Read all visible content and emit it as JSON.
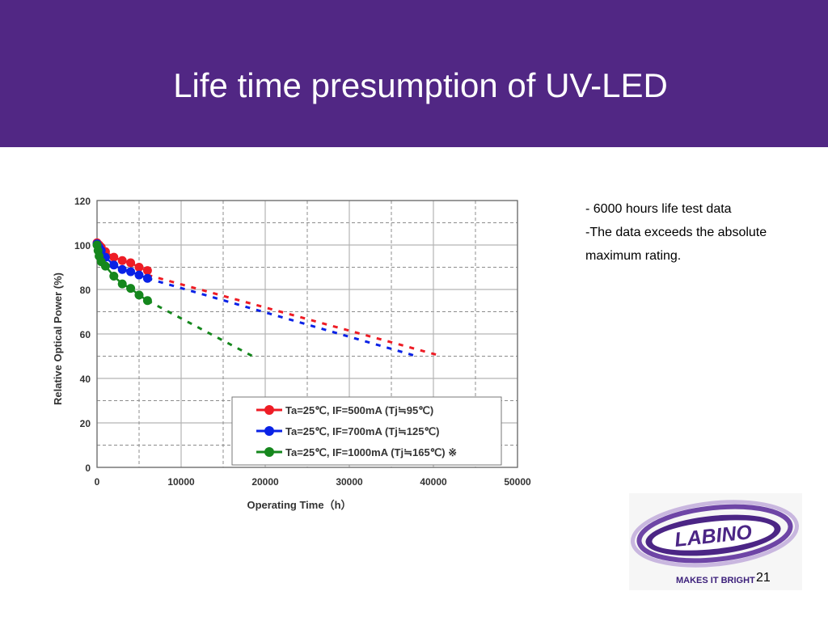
{
  "slide": {
    "title": "Life time presumption of UV-LED",
    "page_number": "21",
    "header_color": "#512784"
  },
  "notes": [
    "- 6000 hours life test data",
    "-The data exceeds the absolute",
    "maximum rating."
  ],
  "logo": {
    "text": "LABINO",
    "tagline": "MAKES IT BRIGHT",
    "primary_color": "#4b2585"
  },
  "chart_data": {
    "type": "line",
    "title": "",
    "xlabel": "Operating Time（h）",
    "ylabel": "Relative Optical Power (%)",
    "xlim": [
      0,
      50000
    ],
    "ylim": [
      0,
      120
    ],
    "x_ticks": [
      "0",
      "10000",
      "20000",
      "30000",
      "40000",
      "50000"
    ],
    "y_ticks": [
      "0",
      "20",
      "40",
      "60",
      "80",
      "100",
      "120"
    ],
    "grid": true,
    "legend_position": "bottom-right",
    "series": [
      {
        "name": "Ta=25℃, IF=500mA (Tj≒95℃)",
        "color": "#ee1c25",
        "measured": {
          "x": [
            0,
            250,
            500,
            1000,
            2000,
            3000,
            4000,
            5000,
            6000
          ],
          "y": [
            101,
            100,
            99,
            97,
            94.5,
            93,
            92,
            90,
            88.5
          ]
        },
        "extrapolated": {
          "x": [
            6000,
            41000
          ],
          "y": [
            86.5,
            50
          ]
        }
      },
      {
        "name": "Ta=25℃, IF=700mA (Tj≒125℃)",
        "color": "#0a22e6",
        "measured": {
          "x": [
            0,
            250,
            500,
            1000,
            2000,
            3000,
            4000,
            5000,
            6000
          ],
          "y": [
            100.5,
            99,
            97.5,
            94.5,
            91,
            89,
            88,
            86.5,
            85
          ]
        },
        "extrapolated": {
          "x": [
            6000,
            38000
          ],
          "y": [
            85,
            50
          ]
        }
      },
      {
        "name": "Ta=25℃, IF=1000mA (Tj≒165℃) ※",
        "color": "#15871d",
        "measured": {
          "x": [
            0,
            125,
            250,
            500,
            1000,
            2000,
            3000,
            4000,
            5000,
            6000
          ],
          "y": [
            100,
            97.5,
            95,
            92.5,
            90.5,
            86,
            82.5,
            80.5,
            77.5,
            75
          ]
        },
        "extrapolated": {
          "x": [
            6000,
            18500
          ],
          "y": [
            75,
            50
          ]
        }
      }
    ]
  }
}
